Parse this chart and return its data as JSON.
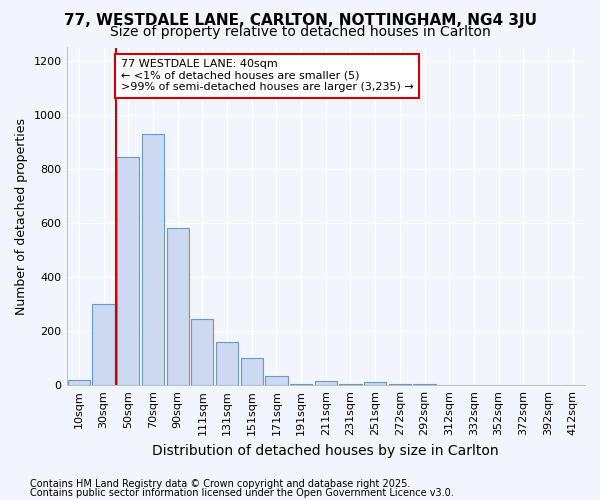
{
  "title1": "77, WESTDALE LANE, CARLTON, NOTTINGHAM, NG4 3JU",
  "title2": "Size of property relative to detached houses in Carlton",
  "xlabel": "Distribution of detached houses by size in Carlton",
  "ylabel": "Number of detached properties",
  "categories": [
    "10sqm",
    "30sqm",
    "50sqm",
    "70sqm",
    "90sqm",
    "111sqm",
    "131sqm",
    "151sqm",
    "171sqm",
    "191sqm",
    "211sqm",
    "231sqm",
    "251sqm",
    "272sqm",
    "292sqm",
    "312sqm",
    "332sqm",
    "352sqm",
    "372sqm",
    "392sqm",
    "412sqm"
  ],
  "values": [
    20,
    300,
    845,
    930,
    580,
    245,
    160,
    100,
    35,
    5,
    15,
    5,
    10,
    5,
    5,
    2,
    2,
    0,
    0,
    0,
    0
  ],
  "bar_color": "#ccd9f0",
  "bar_edge_color": "#6699cc",
  "vline_x": 1.5,
  "vline_color": "#cc0000",
  "annotation_title": "77 WESTDALE LANE: 40sqm",
  "annotation_line1": "← <1% of detached houses are smaller (5)",
  "annotation_line2": ">99% of semi-detached houses are larger (3,235) →",
  "annotation_box_color": "#ffffff",
  "annotation_box_edge": "#cc0000",
  "ylim": [
    0,
    1250
  ],
  "yticks": [
    0,
    200,
    400,
    600,
    800,
    1000,
    1200
  ],
  "footnote1": "Contains HM Land Registry data © Crown copyright and database right 2025.",
  "footnote2": "Contains public sector information licensed under the Open Government Licence v3.0.",
  "bg_color": "#f2f5fc",
  "plot_bg_color": "#f2f5fc",
  "title1_fontsize": 11,
  "title2_fontsize": 10,
  "xlabel_fontsize": 10,
  "ylabel_fontsize": 9,
  "tick_fontsize": 8,
  "annot_fontsize": 8,
  "footnote_fontsize": 7
}
